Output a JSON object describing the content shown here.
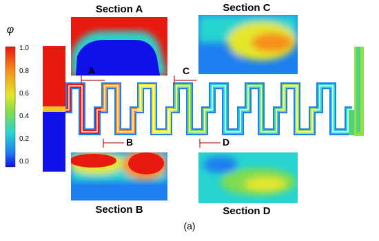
{
  "colorbar": {
    "symbol": "φ",
    "ticks": [
      "1.0",
      "0.8",
      "0.6",
      "0.4",
      "0.2",
      "0.0"
    ]
  },
  "sections": [
    {
      "title": "Section A"
    },
    {
      "title": "Section C"
    },
    {
      "title": "Section B"
    },
    {
      "title": "Section D"
    }
  ],
  "markers": [
    "A",
    "B",
    "C",
    "D"
  ],
  "caption": "(a)"
}
